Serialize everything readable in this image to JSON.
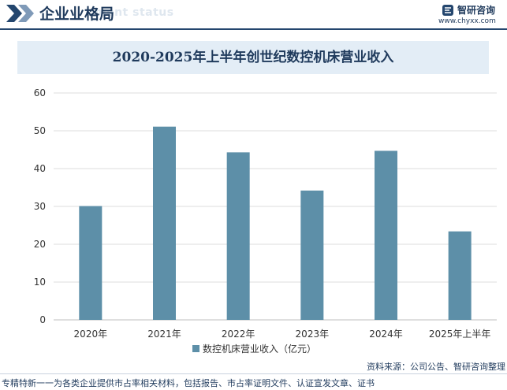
{
  "header": {
    "title": "企业业格局",
    "ghost_text": "ment status",
    "logo_text": "智研咨询",
    "logo_url": "www.chyxx.com"
  },
  "colors": {
    "bar": "#5d8fa8",
    "grid": "#dedede",
    "header_line": "#24466e",
    "title_bg": "#e3edf6"
  },
  "chart_data": {
    "type": "bar",
    "title": "2020-2025年上半年创世纪数控机床营业收入",
    "categories": [
      "2020年",
      "2021年",
      "2022年",
      "2023年",
      "2024年",
      "2025年上半年"
    ],
    "series": [
      {
        "name": "数控机床营业收入（亿元）",
        "values": [
          30.1,
          51.1,
          44.3,
          34.2,
          44.7,
          23.4
        ]
      }
    ],
    "ylim": [
      0,
      60
    ],
    "yticks": [
      0,
      10,
      20,
      30,
      40,
      50,
      60
    ],
    "grid": true,
    "legend_position": "bottom"
  },
  "footer": {
    "source": "资料来源：公司公告、智研咨询整理",
    "tagline": "专精特新一一为各类企业提供市占率相关材料，包括报告、市占率证明文件、认证宣发文章、证书"
  }
}
